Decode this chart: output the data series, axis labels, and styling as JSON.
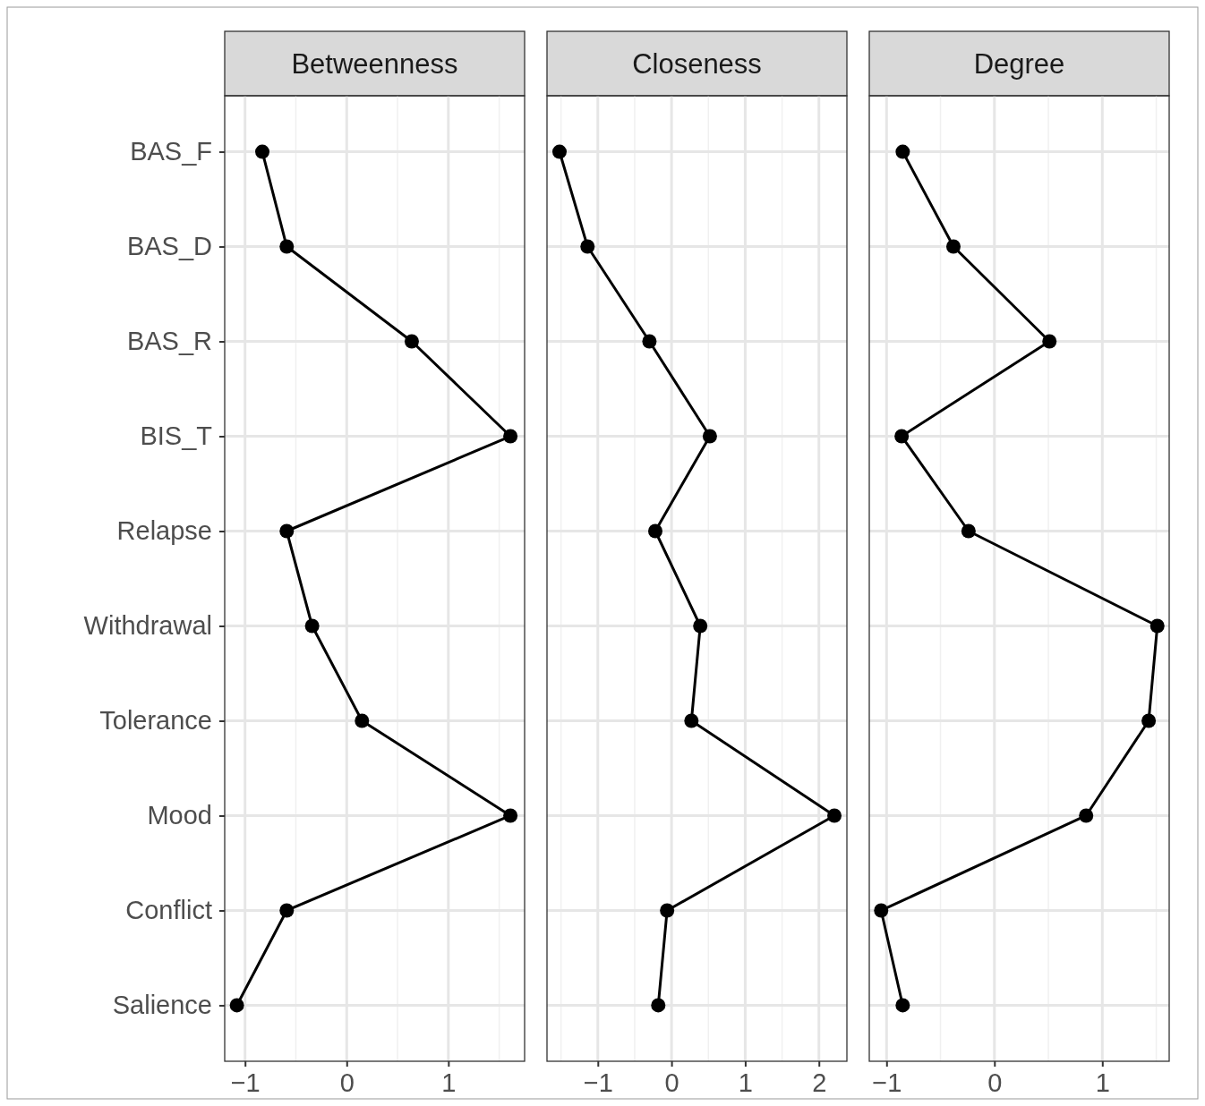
{
  "chart_data": [
    {
      "type": "line",
      "title": "Betweenness",
      "orientation": "horizontal",
      "categories": [
        "BAS_F",
        "BAS_D",
        "BAS_R",
        "BIS_T",
        "Relapse",
        "Withdrawal",
        "Tolerance",
        "Mood",
        "Conflict",
        "Salience"
      ],
      "series": [
        {
          "color": "#000000",
          "values": [
            -0.83,
            -0.59,
            0.64,
            1.61,
            -0.59,
            -0.34,
            0.15,
            1.61,
            -0.59,
            -1.08
          ]
        }
      ],
      "xlim": [
        -1.2,
        1.75
      ],
      "xticks": [
        -1,
        0,
        1
      ],
      "grid": true,
      "marker": "circle",
      "line_style": "solid"
    },
    {
      "type": "line",
      "title": "Closeness",
      "orientation": "horizontal",
      "categories": [
        null,
        null,
        null,
        null,
        null,
        null,
        null,
        null,
        null,
        null
      ],
      "series": [
        {
          "color": "#000000",
          "values": [
            -1.52,
            -1.14,
            -0.3,
            0.52,
            -0.22,
            0.39,
            0.27,
            2.21,
            -0.06,
            -0.18
          ]
        }
      ],
      "xlim": [
        -1.69,
        2.38
      ],
      "xticks": [
        -1,
        0,
        1,
        2
      ],
      "grid": true,
      "marker": "circle",
      "line_style": "solid",
      "tick_labels": "x"
    },
    {
      "type": "line",
      "title": "Degree",
      "orientation": "horizontal",
      "categories": [
        null,
        null,
        null,
        null,
        null,
        null,
        null,
        null,
        null,
        null
      ],
      "series": [
        {
          "color": "#000000",
          "values": [
            -0.85,
            -0.38,
            0.51,
            -0.86,
            -0.24,
            1.51,
            1.43,
            0.85,
            -1.05,
            -0.85
          ]
        }
      ],
      "xlim": [
        -1.16,
        1.62
      ],
      "xticks": [
        -1,
        0,
        1
      ],
      "grid": true,
      "marker": "circle",
      "line_style": "solid",
      "tick_labels": "x"
    }
  ]
}
